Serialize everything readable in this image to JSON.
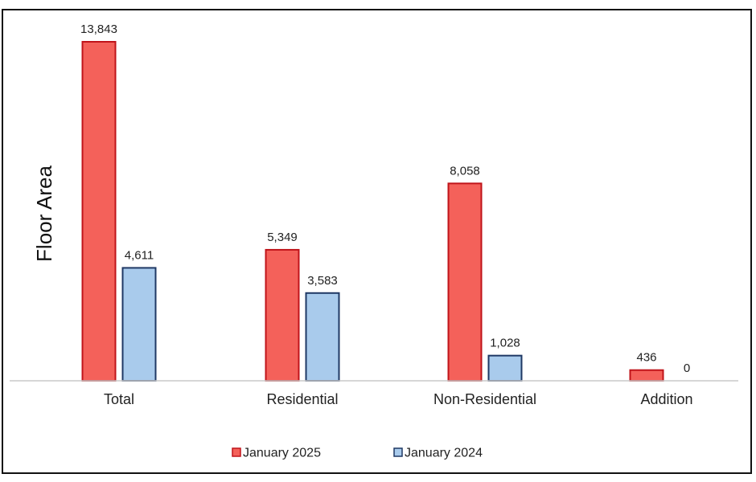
{
  "chart_data": {
    "type": "bar",
    "ylabel": "Floor Area",
    "xlabel": "",
    "categories": [
      "Total",
      "Residential",
      "Non-Residential",
      "Addition"
    ],
    "series": [
      {
        "name": "January 2025",
        "values": [
          13843,
          5349,
          8058,
          436
        ],
        "labels": [
          "13,843",
          "5,349",
          "8,058",
          "436"
        ],
        "color": "#F4615A",
        "border": "#C0141A"
      },
      {
        "name": "January 2024",
        "values": [
          4611,
          3583,
          1028,
          0
        ],
        "labels": [
          "4,611",
          "3,583",
          "1,028",
          "0"
        ],
        "color": "#A9CBEC",
        "border": "#1F3864"
      }
    ],
    "ylim": [
      0,
      13843
    ],
    "grid": false,
    "legend_position": "bottom"
  }
}
